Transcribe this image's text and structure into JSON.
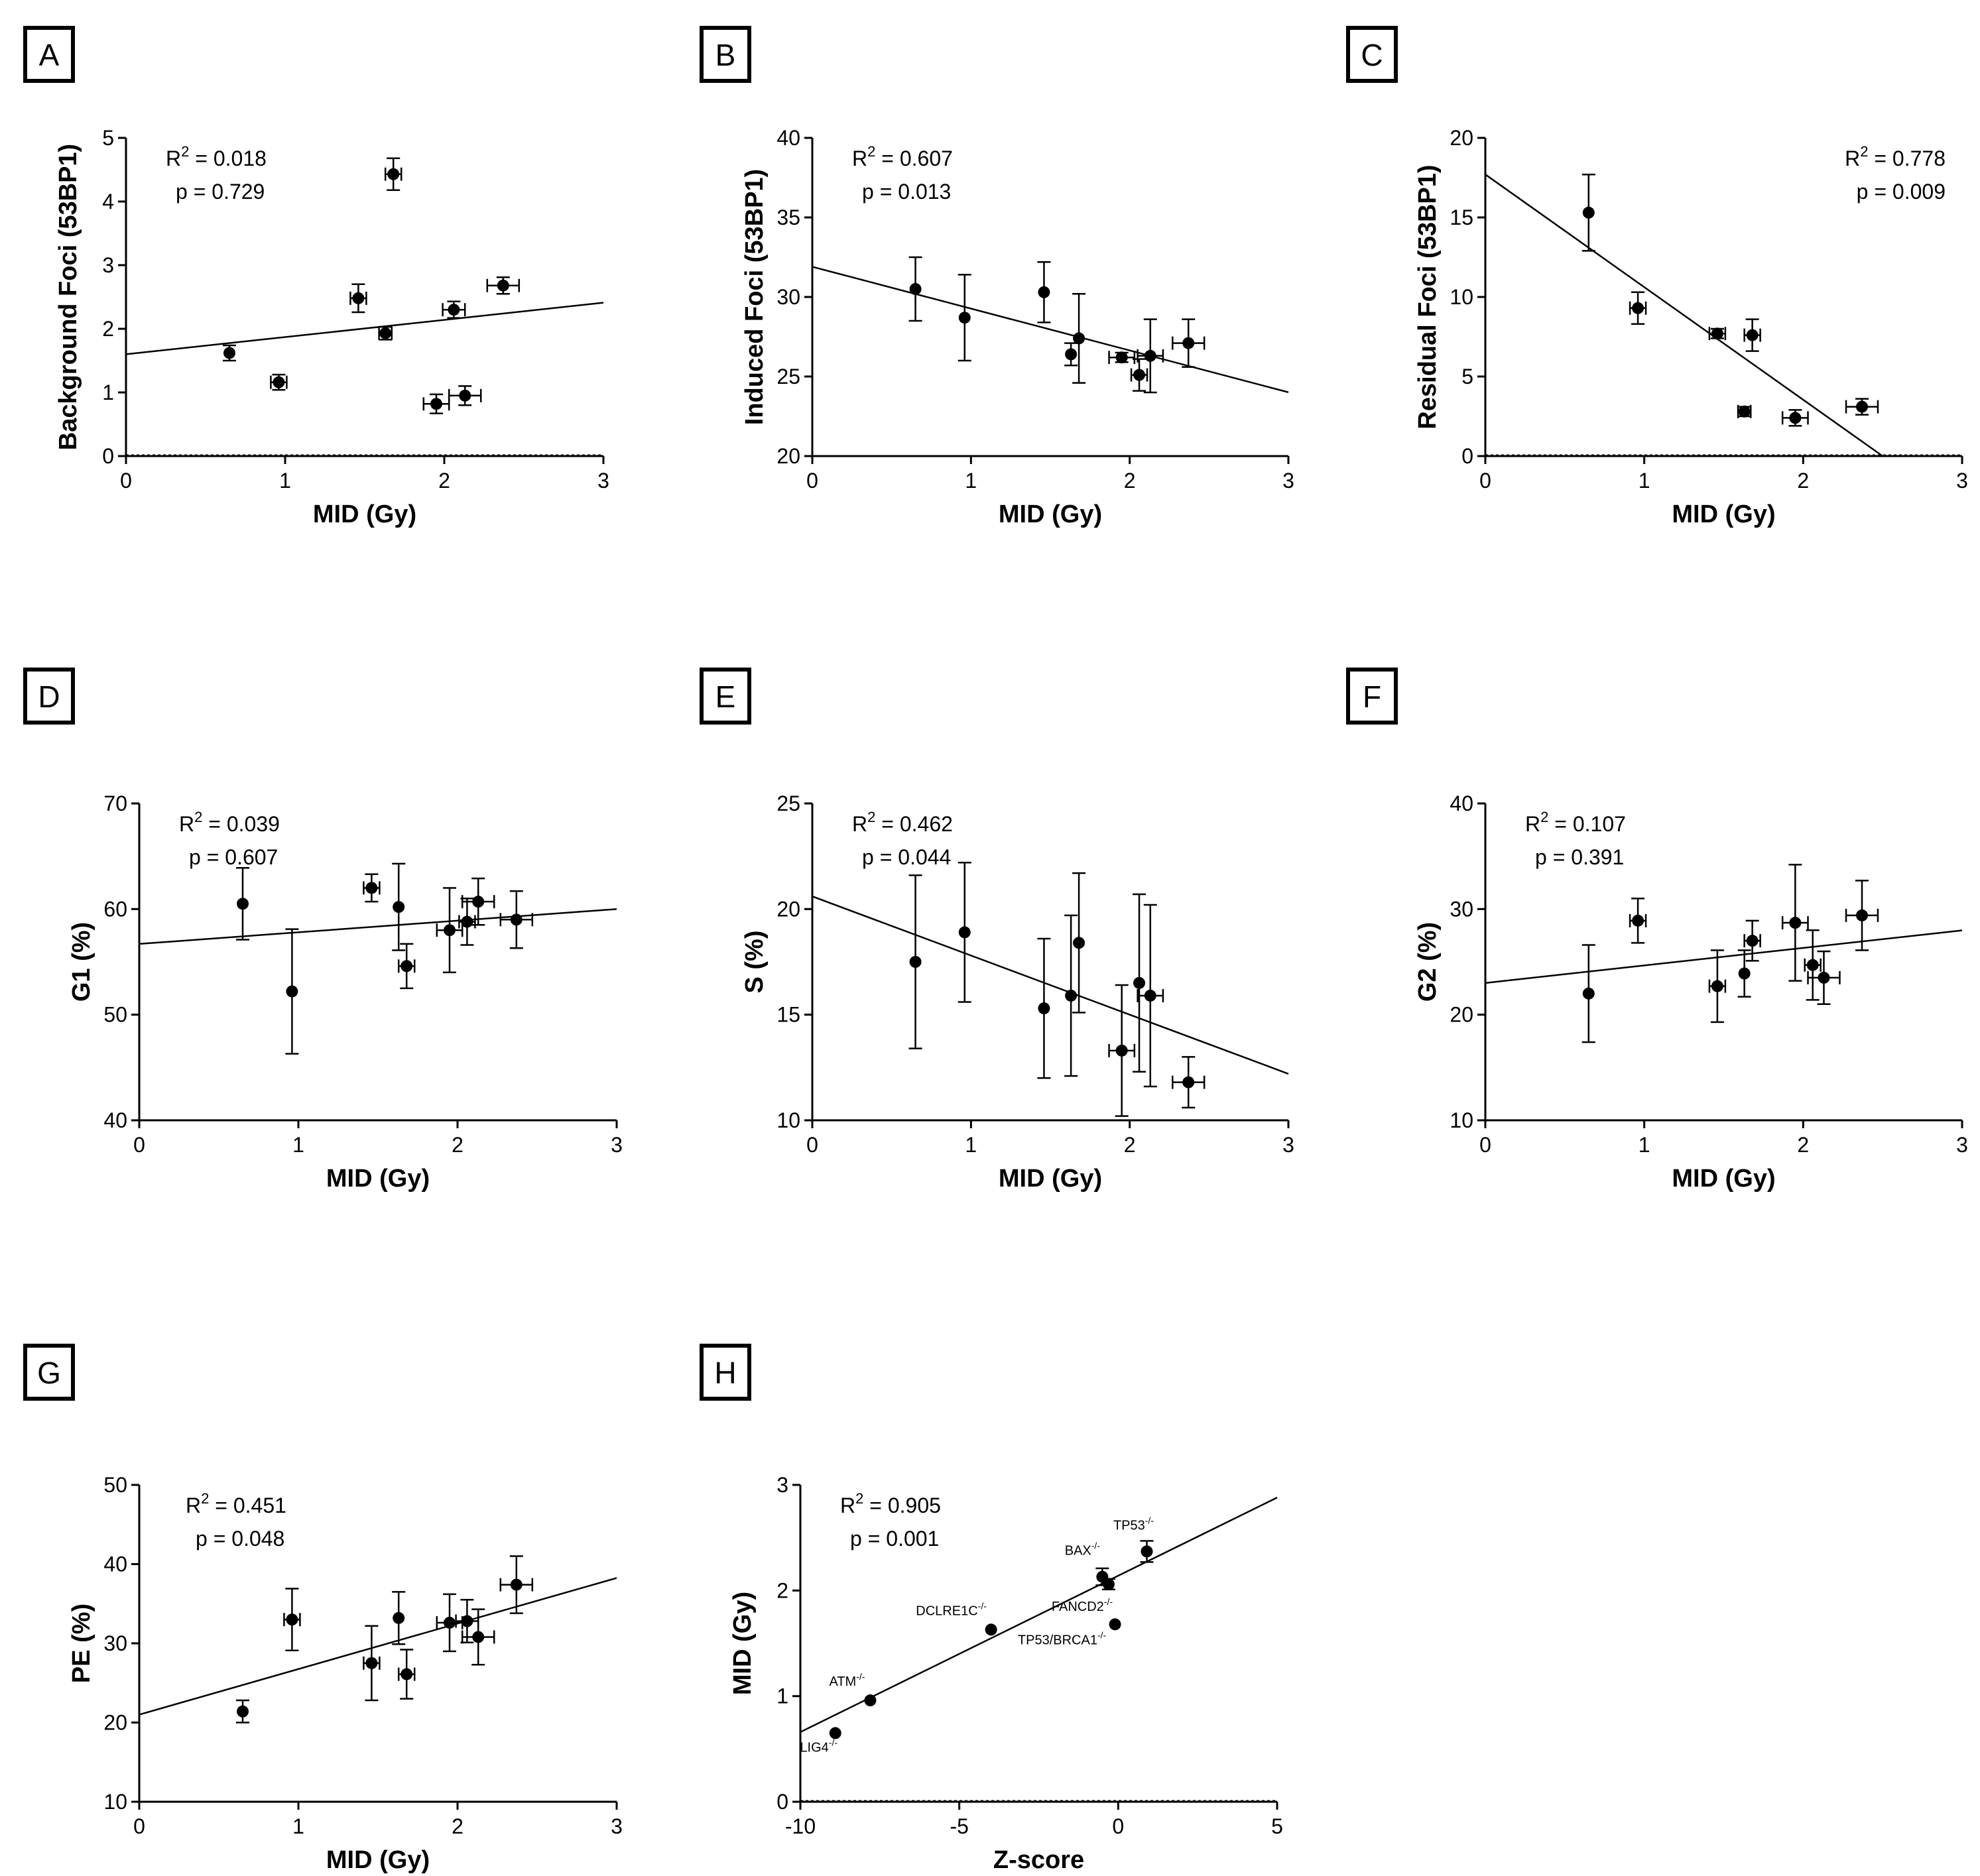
{
  "chart_data": [
    {
      "panel": "A",
      "type": "scatter",
      "xlabel": "MID (Gy)",
      "ylabel": "Background Foci (53BP1)",
      "xlim": [
        0,
        3
      ],
      "ylim": [
        0,
        5
      ],
      "xticks": [
        "0",
        "1",
        "2",
        "3"
      ],
      "yticks": [
        "0",
        "1",
        "2",
        "3",
        "4",
        "5"
      ],
      "r2_label": "R",
      "r2_value": "0.018",
      "p_label": "p =",
      "p_value": "0.729",
      "stats_align": "left",
      "fit": [
        1.6,
        0.27
      ],
      "zero_line": true,
      "points": [
        {
          "x": 0.65,
          "y": 1.62,
          "yerr": 0.12,
          "xerr": 0.02
        },
        {
          "x": 0.96,
          "y": 1.16,
          "yerr": 0.12,
          "xerr": 0.05
        },
        {
          "x": 1.46,
          "y": 2.48,
          "yerr": 0.22,
          "xerr": 0.05
        },
        {
          "x": 1.63,
          "y": 1.93,
          "yerr": 0.1,
          "xerr": 0.04
        },
        {
          "x": 1.68,
          "y": 4.43,
          "yerr": 0.25,
          "xerr": 0.05
        },
        {
          "x": 1.95,
          "y": 0.82,
          "yerr": 0.15,
          "xerr": 0.08
        },
        {
          "x": 2.06,
          "y": 2.3,
          "yerr": 0.13,
          "xerr": 0.07
        },
        {
          "x": 2.13,
          "y": 0.95,
          "yerr": 0.15,
          "xerr": 0.1
        },
        {
          "x": 2.37,
          "y": 2.68,
          "yerr": 0.13,
          "xerr": 0.1
        }
      ]
    },
    {
      "panel": "B",
      "type": "scatter",
      "xlabel": "MID (Gy)",
      "ylabel": "Induced Foci (53BP1)",
      "xlim": [
        0,
        3
      ],
      "ylim": [
        20,
        40
      ],
      "xticks": [
        "0",
        "1",
        "2",
        "3"
      ],
      "yticks": [
        "20",
        "25",
        "30",
        "35",
        "40"
      ],
      "r2_label": "R",
      "r2_value": "0.607",
      "p_label": "p =",
      "p_value": "0.013",
      "stats_align": "left",
      "fit": [
        31.9,
        -2.63
      ],
      "zero_line": false,
      "points": [
        {
          "x": 0.65,
          "y": 30.5,
          "yerr": 2.0,
          "xerr": 0.02
        },
        {
          "x": 0.96,
          "y": 28.7,
          "yerr": 2.7,
          "xerr": 0.03
        },
        {
          "x": 1.46,
          "y": 30.3,
          "yerr": 1.9,
          "xerr": 0.03
        },
        {
          "x": 1.63,
          "y": 26.4,
          "yerr": 0.7,
          "xerr": 0.03
        },
        {
          "x": 1.68,
          "y": 27.4,
          "yerr": 2.8,
          "xerr": 0.03
        },
        {
          "x": 1.95,
          "y": 26.2,
          "yerr": 0.3,
          "xerr": 0.08
        },
        {
          "x": 2.06,
          "y": 25.1,
          "yerr": 1.0,
          "xerr": 0.05
        },
        {
          "x": 2.13,
          "y": 26.3,
          "yerr": 2.3,
          "xerr": 0.08
        },
        {
          "x": 2.37,
          "y": 27.1,
          "yerr": 1.5,
          "xerr": 0.1
        }
      ]
    },
    {
      "panel": "C",
      "type": "scatter",
      "xlabel": "MID (Gy)",
      "ylabel": "Residual Foci (53BP1)",
      "xlim": [
        0,
        3
      ],
      "ylim": [
        0,
        20
      ],
      "xticks": [
        "0",
        "1",
        "2",
        "3"
      ],
      "yticks": [
        "0",
        "5",
        "10",
        "15",
        "20"
      ],
      "r2_label": "R",
      "r2_value": "0.778",
      "p_label": "p =",
      "p_value": "0.009",
      "stats_align": "right",
      "fit": [
        17.7,
        -7.08
      ],
      "zero_line": true,
      "points": [
        {
          "x": 0.65,
          "y": 15.3,
          "yerr": 2.4,
          "xerr": 0.02
        },
        {
          "x": 0.96,
          "y": 9.3,
          "yerr": 1.0,
          "xerr": 0.05
        },
        {
          "x": 1.46,
          "y": 7.7,
          "yerr": 0.3,
          "xerr": 0.05
        },
        {
          "x": 1.63,
          "y": 2.8,
          "yerr": 0.3,
          "xerr": 0.04
        },
        {
          "x": 1.68,
          "y": 7.6,
          "yerr": 1.0,
          "xerr": 0.05
        },
        {
          "x": 1.95,
          "y": 2.4,
          "yerr": 0.5,
          "xerr": 0.08
        },
        {
          "x": 2.37,
          "y": 3.1,
          "yerr": 0.5,
          "xerr": 0.1
        }
      ]
    },
    {
      "panel": "D",
      "type": "scatter",
      "xlabel": "MID (Gy)",
      "ylabel": "G1 (%)",
      "xlim": [
        0,
        3
      ],
      "ylim": [
        40,
        70
      ],
      "xticks": [
        "0",
        "1",
        "2",
        "3"
      ],
      "yticks": [
        "40",
        "50",
        "60",
        "70"
      ],
      "r2_label": "R",
      "r2_value": "0.039",
      "p_label": "p =",
      "p_value": "0.607",
      "stats_align": "left",
      "fit": [
        56.7,
        1.1
      ],
      "zero_line": false,
      "points": [
        {
          "x": 0.65,
          "y": 60.5,
          "yerr": 3.4,
          "xerr": 0.02
        },
        {
          "x": 0.96,
          "y": 52.2,
          "yerr": 5.9,
          "xerr": 0.02
        },
        {
          "x": 1.46,
          "y": 62.0,
          "yerr": 1.3,
          "xerr": 0.05
        },
        {
          "x": 1.63,
          "y": 60.2,
          "yerr": 4.1,
          "xerr": 0.02
        },
        {
          "x": 1.68,
          "y": 54.6,
          "yerr": 2.1,
          "xerr": 0.05
        },
        {
          "x": 1.95,
          "y": 58.0,
          "yerr": 4.0,
          "xerr": 0.08
        },
        {
          "x": 2.06,
          "y": 58.8,
          "yerr": 2.2,
          "xerr": 0.05
        },
        {
          "x": 2.13,
          "y": 60.7,
          "yerr": 2.2,
          "xerr": 0.1
        },
        {
          "x": 2.37,
          "y": 59.0,
          "yerr": 2.7,
          "xerr": 0.1
        }
      ]
    },
    {
      "panel": "E",
      "type": "scatter",
      "xlabel": "MID (Gy)",
      "ylabel": "S (%)",
      "xlim": [
        0,
        3
      ],
      "ylim": [
        10,
        25
      ],
      "xticks": [
        "0",
        "1",
        "2",
        "3"
      ],
      "yticks": [
        "10",
        "15",
        "20",
        "25"
      ],
      "r2_label": "R",
      "r2_value": "0.462",
      "p_label": "p =",
      "p_value": "0.044",
      "stats_align": "left",
      "fit": [
        20.6,
        -2.8
      ],
      "zero_line": false,
      "points": [
        {
          "x": 0.65,
          "y": 17.5,
          "yerr": 4.1,
          "xerr": 0.02
        },
        {
          "x": 0.96,
          "y": 18.9,
          "yerr": 3.3,
          "xerr": 0.02
        },
        {
          "x": 1.46,
          "y": 15.3,
          "yerr": 3.3,
          "xerr": 0.02
        },
        {
          "x": 1.63,
          "y": 15.9,
          "yerr": 3.8,
          "xerr": 0.02
        },
        {
          "x": 1.68,
          "y": 18.4,
          "yerr": 3.3,
          "xerr": 0.02
        },
        {
          "x": 1.95,
          "y": 13.3,
          "yerr": 3.1,
          "xerr": 0.08
        },
        {
          "x": 2.06,
          "y": 16.5,
          "yerr": 4.2,
          "xerr": 0.02
        },
        {
          "x": 2.13,
          "y": 15.9,
          "yerr": 4.3,
          "xerr": 0.08
        },
        {
          "x": 2.37,
          "y": 11.8,
          "yerr": 1.2,
          "xerr": 0.1
        }
      ]
    },
    {
      "panel": "F",
      "type": "scatter",
      "xlabel": "MID (Gy)",
      "ylabel": "G2 (%)",
      "xlim": [
        0,
        3
      ],
      "ylim": [
        10,
        40
      ],
      "xticks": [
        "0",
        "1",
        "2",
        "3"
      ],
      "yticks": [
        "10",
        "20",
        "30",
        "40"
      ],
      "r2_label": "R",
      "r2_value": "0.107",
      "p_label": "p =",
      "p_value": "0.391",
      "stats_align": "left",
      "fit": [
        23.0,
        1.66
      ],
      "zero_line": false,
      "points": [
        {
          "x": 0.65,
          "y": 22.0,
          "yerr": 4.6,
          "xerr": 0.02
        },
        {
          "x": 0.96,
          "y": 28.9,
          "yerr": 2.1,
          "xerr": 0.05
        },
        {
          "x": 1.46,
          "y": 22.7,
          "yerr": 3.4,
          "xerr": 0.05
        },
        {
          "x": 1.63,
          "y": 23.9,
          "yerr": 2.2,
          "xerr": 0.02
        },
        {
          "x": 1.68,
          "y": 27.0,
          "yerr": 1.9,
          "xerr": 0.05
        },
        {
          "x": 1.95,
          "y": 28.7,
          "yerr": 5.5,
          "xerr": 0.08
        },
        {
          "x": 2.06,
          "y": 24.7,
          "yerr": 3.3,
          "xerr": 0.05
        },
        {
          "x": 2.13,
          "y": 23.5,
          "yerr": 2.5,
          "xerr": 0.1
        },
        {
          "x": 2.37,
          "y": 29.4,
          "yerr": 3.3,
          "xerr": 0.1
        }
      ]
    },
    {
      "panel": "G",
      "type": "scatter",
      "xlabel": "MID (Gy)",
      "ylabel": "PE (%)",
      "xlim": [
        0,
        3
      ],
      "ylim": [
        10,
        50
      ],
      "xticks": [
        "0",
        "1",
        "2",
        "3"
      ],
      "yticks": [
        "10",
        "20",
        "30",
        "40",
        "50"
      ],
      "r2_label": "R",
      "r2_value": "0.451",
      "p_label": "p =",
      "p_value": "0.048",
      "stats_align": "left",
      "fit": [
        21.0,
        5.75
      ],
      "zero_line": false,
      "points": [
        {
          "x": 0.65,
          "y": 21.4,
          "yerr": 1.4,
          "xerr": 0.02
        },
        {
          "x": 0.96,
          "y": 33.0,
          "yerr": 3.9,
          "xerr": 0.05
        },
        {
          "x": 1.46,
          "y": 27.5,
          "yerr": 4.7,
          "xerr": 0.05
        },
        {
          "x": 1.63,
          "y": 33.2,
          "yerr": 3.3,
          "xerr": 0.02
        },
        {
          "x": 1.68,
          "y": 26.1,
          "yerr": 3.1,
          "xerr": 0.05
        },
        {
          "x": 1.95,
          "y": 32.6,
          "yerr": 3.6,
          "xerr": 0.08
        },
        {
          "x": 2.06,
          "y": 32.8,
          "yerr": 2.7,
          "xerr": 0.07
        },
        {
          "x": 2.13,
          "y": 30.8,
          "yerr": 3.5,
          "xerr": 0.1
        },
        {
          "x": 2.37,
          "y": 37.4,
          "yerr": 3.6,
          "xerr": 0.1
        }
      ]
    },
    {
      "panel": "H",
      "type": "scatter",
      "xlabel": "Z-score",
      "ylabel": "MID (Gy)",
      "xlim": [
        -10,
        5
      ],
      "ylim": [
        0,
        3
      ],
      "xticks": [
        "-10",
        "-5",
        "0",
        "5"
      ],
      "yticks": [
        "0",
        "1",
        "2",
        "3"
      ],
      "r2_label": "R",
      "r2_value": "0.905",
      "p_label": "p =",
      "p_value": "0.001",
      "stats_align": "left",
      "fit": [
        2.14,
        0.148
      ],
      "zero_line": true,
      "points": [
        {
          "x": -8.9,
          "y": 0.65,
          "yerr": 0,
          "xerr": 0,
          "label": "LIG4",
          "ldx": -25,
          "ldy": 28
        },
        {
          "x": -7.8,
          "y": 0.96,
          "yerr": 0,
          "xerr": 0,
          "label": "ATM",
          "ldx": -35,
          "ldy": -22
        },
        {
          "x": -4.0,
          "y": 1.63,
          "yerr": 0,
          "xerr": 0,
          "label": "DCLRE1C",
          "ldx": -60,
          "ldy": -22
        },
        {
          "x": -0.1,
          "y": 1.68,
          "yerr": 0,
          "xerr": 0,
          "label": "TP53/BRCA1",
          "ldx": -80,
          "ldy": 30
        },
        {
          "x": -0.3,
          "y": 2.06,
          "yerr": 0.05,
          "xerr": 0,
          "label": "FANCD2",
          "ldx": -40,
          "ldy": 40
        },
        {
          "x": -0.5,
          "y": 2.13,
          "yerr": 0.08,
          "xerr": 0,
          "label": "BAX",
          "ldx": -30,
          "ldy": -33
        },
        {
          "x": 0.9,
          "y": 2.37,
          "yerr": 0.1,
          "xerr": 0,
          "label": "TP53",
          "ldx": -20,
          "ldy": -33
        }
      ]
    }
  ]
}
